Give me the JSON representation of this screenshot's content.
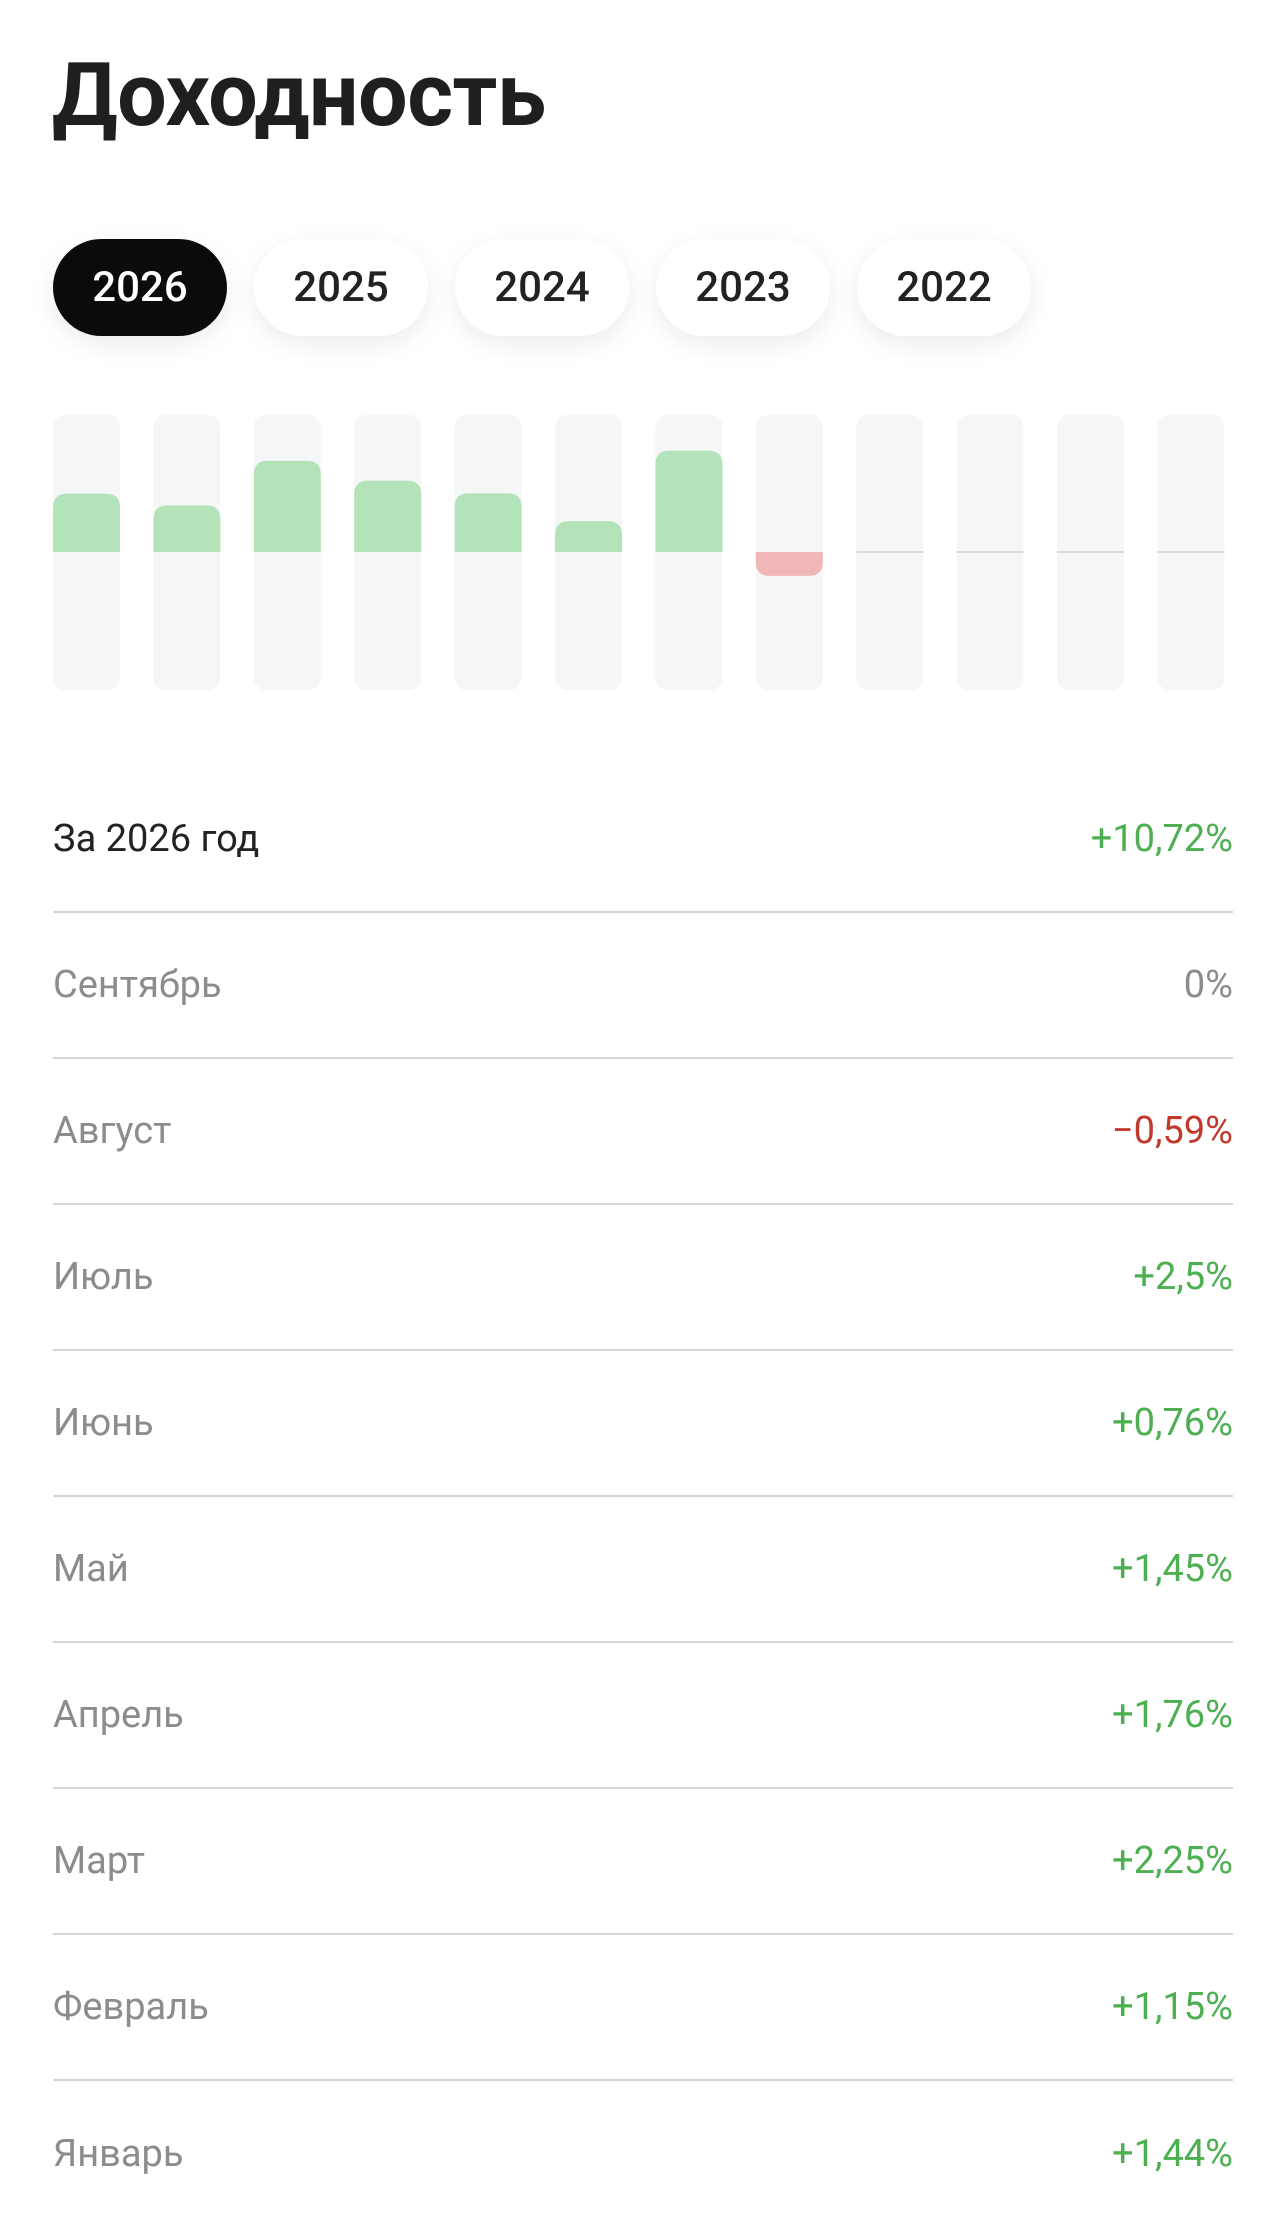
{
  "header": {
    "title": "Доходность"
  },
  "tabs": [
    {
      "label": "2026",
      "selected": true
    },
    {
      "label": "2025",
      "selected": false
    },
    {
      "label": "2024",
      "selected": false
    },
    {
      "label": "2023",
      "selected": false
    },
    {
      "label": "2022",
      "selected": false
    }
  ],
  "summary": {
    "label": "За 2026 год",
    "value": 10.72,
    "value_label": "+10,72%"
  },
  "months": [
    {
      "label": "Сентябрь",
      "value": 0,
      "value_label": "0%"
    },
    {
      "label": "Август",
      "value": -0.59,
      "value_label": "−0,59%"
    },
    {
      "label": "Июль",
      "value": 2.5,
      "value_label": "+2,5%"
    },
    {
      "label": "Июнь",
      "value": 0.76,
      "value_label": "+0,76%"
    },
    {
      "label": "Май",
      "value": 1.45,
      "value_label": "+1,45%"
    },
    {
      "label": "Апрель",
      "value": 1.76,
      "value_label": "+1,76%"
    },
    {
      "label": "Март",
      "value": 2.25,
      "value_label": "+2,25%"
    },
    {
      "label": "Февраль",
      "value": 1.15,
      "value_label": "+1,15%"
    },
    {
      "label": "Январь",
      "value": 1.44,
      "value_label": "+1,44%"
    }
  ]
}
